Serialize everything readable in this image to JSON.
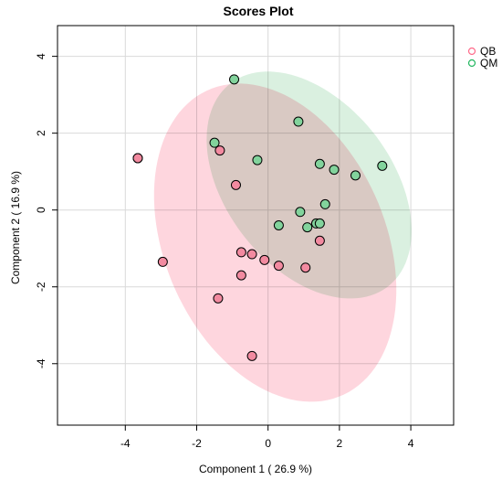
{
  "chart_data": {
    "type": "scatter",
    "title": "Scores Plot",
    "xlabel": "Component 1 ( 26.9 %)",
    "ylabel": "Component 2 ( 16.9 %)",
    "xlim": [
      -5.9,
      5.2
    ],
    "ylim": [
      -5.6,
      4.8
    ],
    "xticks": [
      -4,
      -2,
      0,
      2,
      4
    ],
    "yticks": [
      -4,
      -2,
      0,
      2,
      4
    ],
    "grid": true,
    "legend": "top-right",
    "series": [
      {
        "name": "QB",
        "color": "#ff6b8a",
        "fill": "#f28aa0",
        "ellipse": {
          "center": [
            0.2,
            -0.85
          ],
          "rx": 4.4,
          "ry": 3.05,
          "angle_deg": -62,
          "fill": "#fdc8d3"
        },
        "points": [
          [
            -3.65,
            1.35
          ],
          [
            -3.65,
            1.35
          ],
          [
            -1.35,
            1.55
          ],
          [
            -0.9,
            0.65
          ],
          [
            -2.95,
            -1.35
          ],
          [
            -0.75,
            -1.1
          ],
          [
            -0.45,
            -1.15
          ],
          [
            -0.1,
            -1.3
          ],
          [
            0.3,
            -1.45
          ],
          [
            1.05,
            -1.5
          ],
          [
            1.45,
            -0.8
          ],
          [
            -0.75,
            -1.7
          ],
          [
            -1.4,
            -2.3
          ],
          [
            -0.45,
            -3.8
          ]
        ]
      },
      {
        "name": "QM",
        "color": "#23b760",
        "fill": "#82d39c",
        "ellipse": {
          "center": [
            1.15,
            0.65
          ],
          "rx": 3.45,
          "ry": 2.25,
          "angle_deg": -47,
          "fill": "#cdebd6"
        },
        "points": [
          [
            -0.95,
            3.4
          ],
          [
            0.85,
            2.3
          ],
          [
            -1.5,
            1.75
          ],
          [
            -0.3,
            1.3
          ],
          [
            1.45,
            1.2
          ],
          [
            1.85,
            1.05
          ],
          [
            2.45,
            0.9
          ],
          [
            3.2,
            1.15
          ],
          [
            1.6,
            0.15
          ],
          [
            0.9,
            -0.05
          ],
          [
            0.3,
            -0.4
          ],
          [
            1.1,
            -0.45
          ],
          [
            1.35,
            -0.35
          ],
          [
            1.45,
            -0.35
          ]
        ]
      }
    ]
  }
}
